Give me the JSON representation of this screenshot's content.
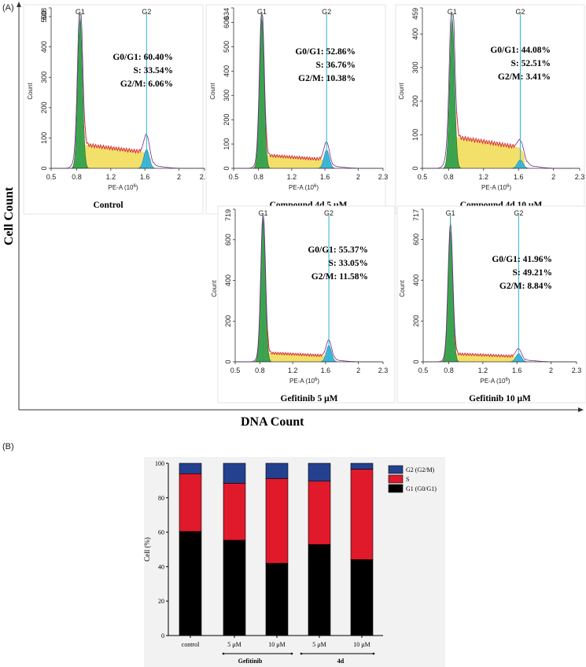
{
  "panel_a": {
    "label": "(A)",
    "y_axis_title": "Cell Count",
    "x_axis_title": "DNA Count",
    "histograms": [
      {
        "id": "control",
        "caption": "Control",
        "ymax_label": "508",
        "y_ticks": [
          "0",
          "100",
          "200",
          "300",
          "400",
          "500"
        ],
        "y_values": [
          0,
          100,
          200,
          300,
          400,
          500
        ],
        "y_max": 508,
        "x_ticks": [
          "0.5",
          "0.8",
          "1.2",
          "1.6",
          "2",
          "2.3"
        ],
        "x_tick_values": [
          0.5,
          0.8,
          1.2,
          1.6,
          2.0,
          2.3
        ],
        "x_range": [
          0.5,
          2.3
        ],
        "y_axis_label": "Count",
        "x_axis_label": "PE-A (10",
        "x_axis_exp": "6",
        "x_axis_close": ")",
        "g1_label": "G1",
        "g2_label": "G2",
        "g1_pos": 0.84,
        "g2_pos": 1.62,
        "g1_height": 495,
        "g2_height": 62,
        "s_level": 80,
        "stats": [
          {
            "label": "G0/G1:",
            "value": "60.40%"
          },
          {
            "label": "S:",
            "value": "33.54%"
          },
          {
            "label": "G2/M:",
            "value": "6.06%"
          }
        ]
      },
      {
        "id": "compound-5",
        "caption": "Compound 4d  5 μM",
        "ymax_label": "634",
        "y_ticks": [
          "0",
          "100",
          "200",
          "300",
          "400",
          "500",
          "600"
        ],
        "y_values": [
          0,
          100,
          200,
          300,
          400,
          500,
          600
        ],
        "y_max": 634,
        "x_ticks": [
          "0.5",
          "0.8",
          "1.2",
          "1.6",
          "2",
          "2.3"
        ],
        "x_tick_values": [
          0.5,
          0.8,
          1.2,
          1.6,
          2.0,
          2.3
        ],
        "x_range": [
          0.5,
          2.3
        ],
        "y_axis_label": "Count",
        "x_axis_label": "PE-A (10",
        "x_axis_exp": "6",
        "x_axis_close": ")",
        "g1_label": "G1",
        "g2_label": "G2",
        "g1_pos": 0.84,
        "g2_pos": 1.62,
        "g1_height": 620,
        "g2_height": 75,
        "s_level": 55,
        "stats": [
          {
            "label": "G0/G1:",
            "value": "52.86%"
          },
          {
            "label": "S:",
            "value": "36.76%"
          },
          {
            "label": "G2/M:",
            "value": "10.38%"
          }
        ]
      },
      {
        "id": "compound-10",
        "caption": "Compound 4d  10 μM",
        "ymax_label": "459",
        "y_ticks": [
          "0",
          "100",
          "200",
          "300",
          "400"
        ],
        "y_values": [
          0,
          100,
          200,
          300,
          400
        ],
        "y_max": 459,
        "x_ticks": [
          "0.5",
          "0.8",
          "1.2",
          "1.6",
          "2",
          "2.3"
        ],
        "x_tick_values": [
          0.5,
          0.8,
          1.2,
          1.6,
          2.0,
          2.3
        ],
        "x_range": [
          0.5,
          2.3
        ],
        "y_axis_label": "Count",
        "x_axis_label": "PE-A (10",
        "x_axis_exp": "6",
        "x_axis_close": ")",
        "g1_label": "G1",
        "g2_label": "G2",
        "g1_pos": 0.84,
        "g2_pos": 1.62,
        "g1_height": 445,
        "g2_height": 25,
        "s_level": 95,
        "stats": [
          {
            "label": "G0/G1:",
            "value": "44.08%"
          },
          {
            "label": "S:",
            "value": "52.51%"
          },
          {
            "label": "G2/M:",
            "value": "3.41%"
          }
        ]
      },
      {
        "id": "gefitinib-5",
        "caption": "Gefitinib  5 μM",
        "ymax_label": "719",
        "y_ticks": [
          "0",
          "200",
          "400",
          "600"
        ],
        "y_values": [
          0,
          200,
          400,
          600
        ],
        "y_max": 719,
        "x_ticks": [
          "0.5",
          "0.8",
          "1.2",
          "1.6",
          "2",
          "2.3"
        ],
        "x_tick_values": [
          0.5,
          0.8,
          1.2,
          1.6,
          2.0,
          2.3
        ],
        "x_range": [
          0.5,
          2.3
        ],
        "y_axis_label": "Count",
        "x_axis_label": "PE-A (10",
        "x_axis_exp": "6",
        "x_axis_close": ")",
        "g1_label": "G1",
        "g2_label": "G2",
        "g1_pos": 0.84,
        "g2_pos": 1.64,
        "g1_height": 700,
        "g2_height": 80,
        "s_level": 45,
        "stats": [
          {
            "label": "G0/G1:",
            "value": "55.37%"
          },
          {
            "label": "S:",
            "value": "33.05%"
          },
          {
            "label": "G2/M:",
            "value": "11.58%"
          }
        ]
      },
      {
        "id": "gefitinib-10",
        "caption": "Gefitinib  10 μM",
        "ymax_label": "717",
        "y_ticks": [
          "0",
          "200",
          "400",
          "600"
        ],
        "y_values": [
          0,
          200,
          400,
          600
        ],
        "y_max": 717,
        "x_ticks": [
          "0.5",
          "0.8",
          "1.2",
          "1.6",
          "2",
          "2.3"
        ],
        "x_tick_values": [
          0.5,
          0.8,
          1.2,
          1.6,
          2.0,
          2.3
        ],
        "x_range": [
          0.5,
          2.3
        ],
        "y_axis_label": "Count",
        "x_axis_label": "PE-A (10",
        "x_axis_exp": "6",
        "x_axis_close": ")",
        "g1_label": "G1",
        "g2_label": "G2",
        "g1_pos": 0.82,
        "g2_pos": 1.62,
        "g1_height": 640,
        "g2_height": 40,
        "s_level": 40,
        "stats": [
          {
            "label": "G0/G1:",
            "value": "41.96%"
          },
          {
            "label": "S:",
            "value": "49.21%"
          },
          {
            "label": "G2/M:",
            "value": "8.84%"
          }
        ]
      }
    ]
  },
  "panel_b": {
    "label": "(B)",
    "group_labels": {
      "gefitinib": "Gefitinib",
      "compound": "4d"
    }
  },
  "chart_data": {
    "type": "bar",
    "stacked": true,
    "title": "",
    "xlabel": "",
    "ylabel": "Cell (%)",
    "ylim": [
      0,
      100
    ],
    "yticks": [
      "0",
      "20",
      "40",
      "60",
      "80",
      "100"
    ],
    "categories": [
      "control",
      "5 μM",
      "10 μM",
      "5 μM",
      "10 μM"
    ],
    "series": [
      {
        "name": "G1 (G0/G1)",
        "color": "#000000",
        "values": [
          60.4,
          55.37,
          41.96,
          52.86,
          44.08
        ]
      },
      {
        "name": "S",
        "color": "#e01a2b",
        "values": [
          33.54,
          33.05,
          49.21,
          36.76,
          52.51
        ]
      },
      {
        "name": "G2 (G2/M)",
        "color": "#23418e",
        "values": [
          6.06,
          11.58,
          8.84,
          10.38,
          3.41
        ]
      }
    ],
    "legend": [
      "G2 (G2/M)",
      "S",
      "G1 (G0/G1)"
    ],
    "legend_position": "top-right"
  }
}
